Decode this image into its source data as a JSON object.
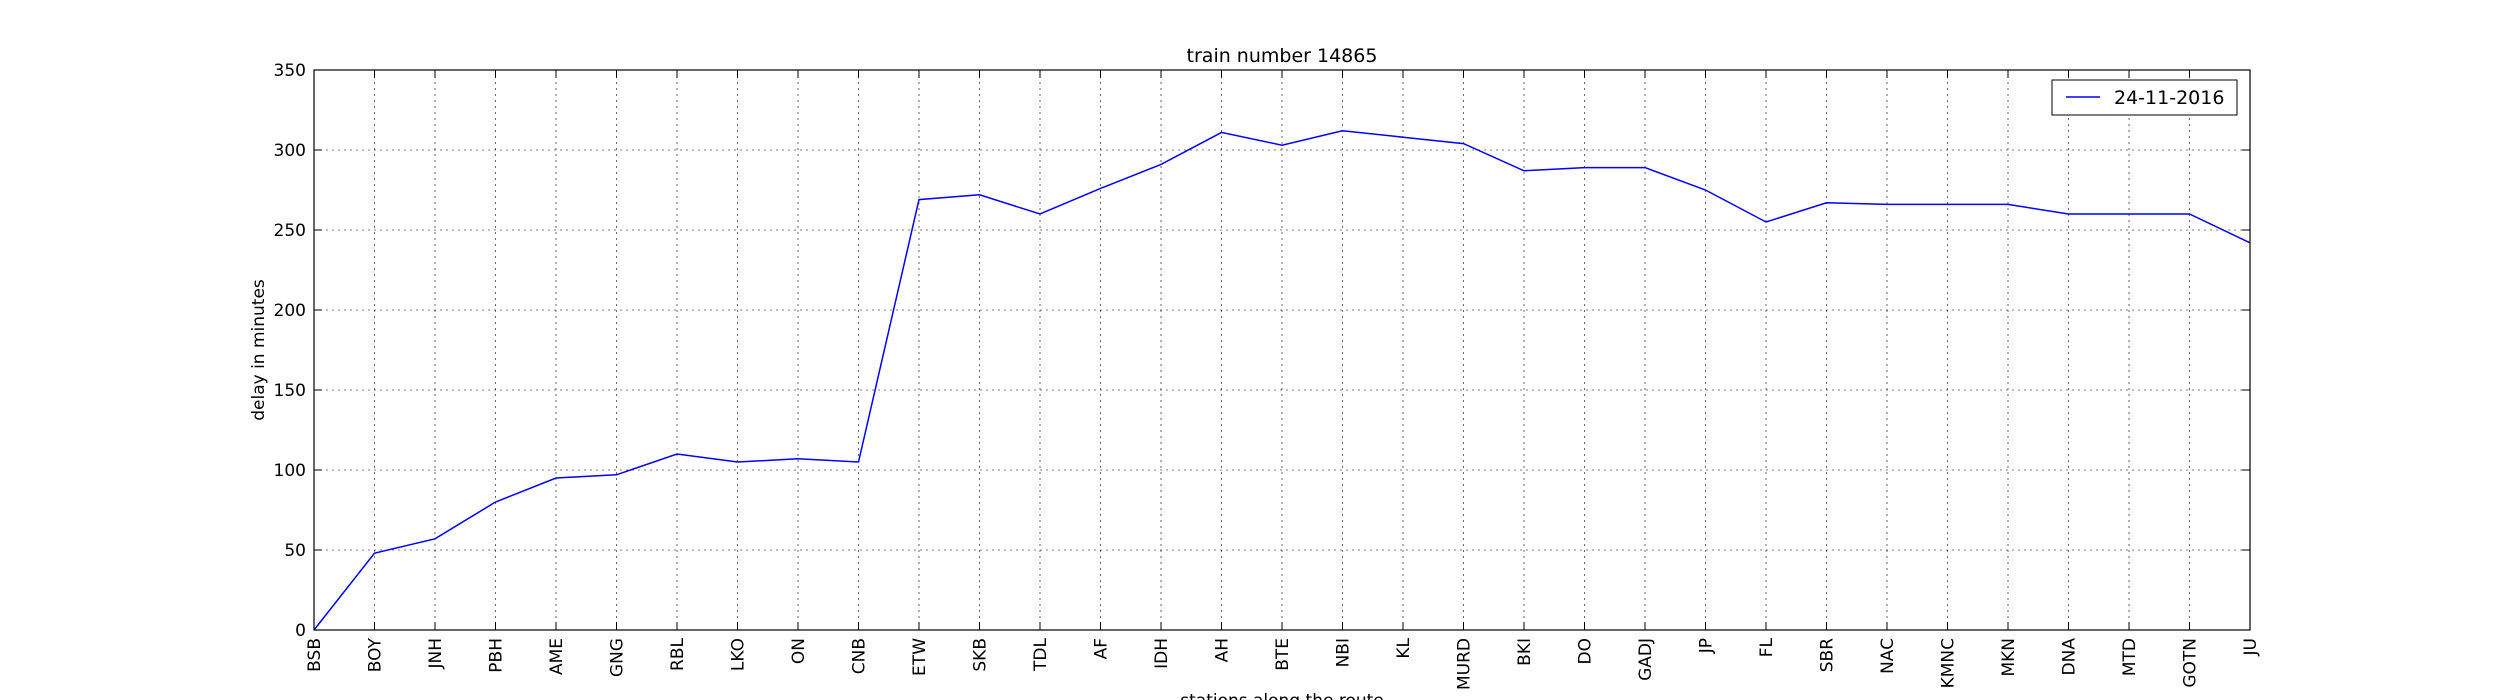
{
  "chart_data": {
    "type": "line",
    "title": "train number 14865",
    "xlabel": "stations along the route",
    "ylabel": "delay in minutes",
    "categories": [
      "BSB",
      "BOY",
      "JNH",
      "PBH",
      "AME",
      "GNG",
      "RBL",
      "LKO",
      "ON",
      "CNB",
      "ETW",
      "SKB",
      "TDL",
      "AF",
      "IDH",
      "AH",
      "BTE",
      "NBI",
      "KL",
      "MURD",
      "BKI",
      "DO",
      "GADJ",
      "JP",
      "FL",
      "SBR",
      "NAC",
      "KMNC",
      "MKN",
      "DNA",
      "MTD",
      "GOTN",
      "JU"
    ],
    "series": [
      {
        "name": "24-11-2016",
        "color": "#0000ff",
        "values": [
          0,
          48,
          57,
          80,
          95,
          97,
          110,
          105,
          107,
          105,
          269,
          272,
          260,
          276,
          291,
          311,
          303,
          312,
          308,
          304,
          287,
          289,
          289,
          275,
          255,
          267,
          266,
          266,
          266,
          260,
          260,
          260,
          242
        ]
      }
    ],
    "ylim": [
      0,
      350
    ],
    "yticks": [
      0,
      50,
      100,
      150,
      200,
      250,
      300,
      350
    ],
    "grid": true,
    "legend_position": "top-right"
  }
}
